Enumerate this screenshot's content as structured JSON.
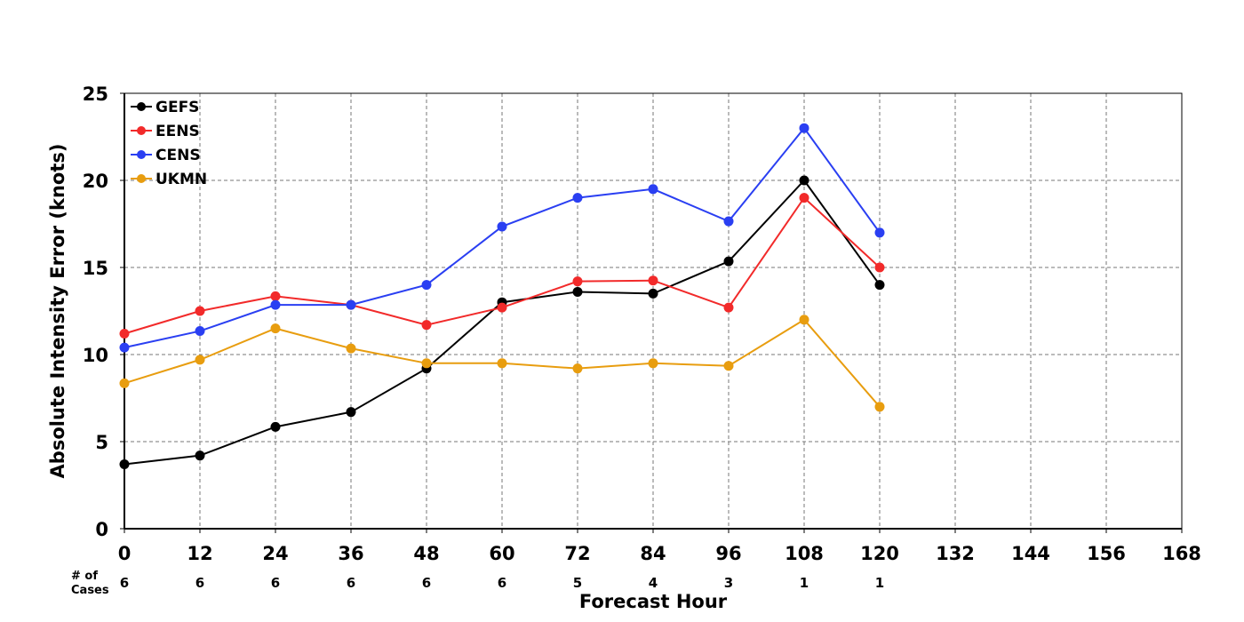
{
  "chart_data": {
    "type": "line",
    "xlabel": "Forecast Hour",
    "ylabel": "Absolute Intensity Error (knots)",
    "xlim": [
      0,
      168
    ],
    "ylim": [
      0,
      25
    ],
    "x_ticks": [
      "0",
      "12",
      "24",
      "36",
      "48",
      "60",
      "72",
      "84",
      "96",
      "108",
      "120",
      "132",
      "144",
      "156",
      "168"
    ],
    "y_ticks": [
      "0",
      "5",
      "10",
      "15",
      "20",
      "25"
    ],
    "grid": true,
    "legend_position": "top-left",
    "x": [
      0,
      12,
      24,
      36,
      48,
      60,
      72,
      84,
      96,
      108,
      120
    ],
    "series": [
      {
        "name": "GEFS",
        "color": "#000000",
        "values": [
          3.7,
          4.2,
          5.85,
          6.7,
          9.2,
          13.0,
          13.6,
          13.5,
          15.35,
          20.0,
          14.0
        ]
      },
      {
        "name": "EENS",
        "color": "#f22a2a",
        "values": [
          11.2,
          12.5,
          13.35,
          12.85,
          11.7,
          12.7,
          14.2,
          14.25,
          12.7,
          19.0,
          15.0
        ]
      },
      {
        "name": "CENS",
        "color": "#2a3ff2",
        "values": [
          10.4,
          11.35,
          12.85,
          12.85,
          14.0,
          17.35,
          19.0,
          19.5,
          17.65,
          23.0,
          17.0
        ]
      },
      {
        "name": "UKMN",
        "color": "#e89d0f",
        "values": [
          8.35,
          9.7,
          11.5,
          10.35,
          9.5,
          9.5,
          9.2,
          9.5,
          9.35,
          12.0,
          7.0
        ]
      }
    ],
    "cases_label_line1": "# of",
    "cases_label_line2": "Cases",
    "cases": [
      "6",
      "6",
      "6",
      "6",
      "6",
      "6",
      "5",
      "4",
      "3",
      "1",
      "1"
    ]
  }
}
